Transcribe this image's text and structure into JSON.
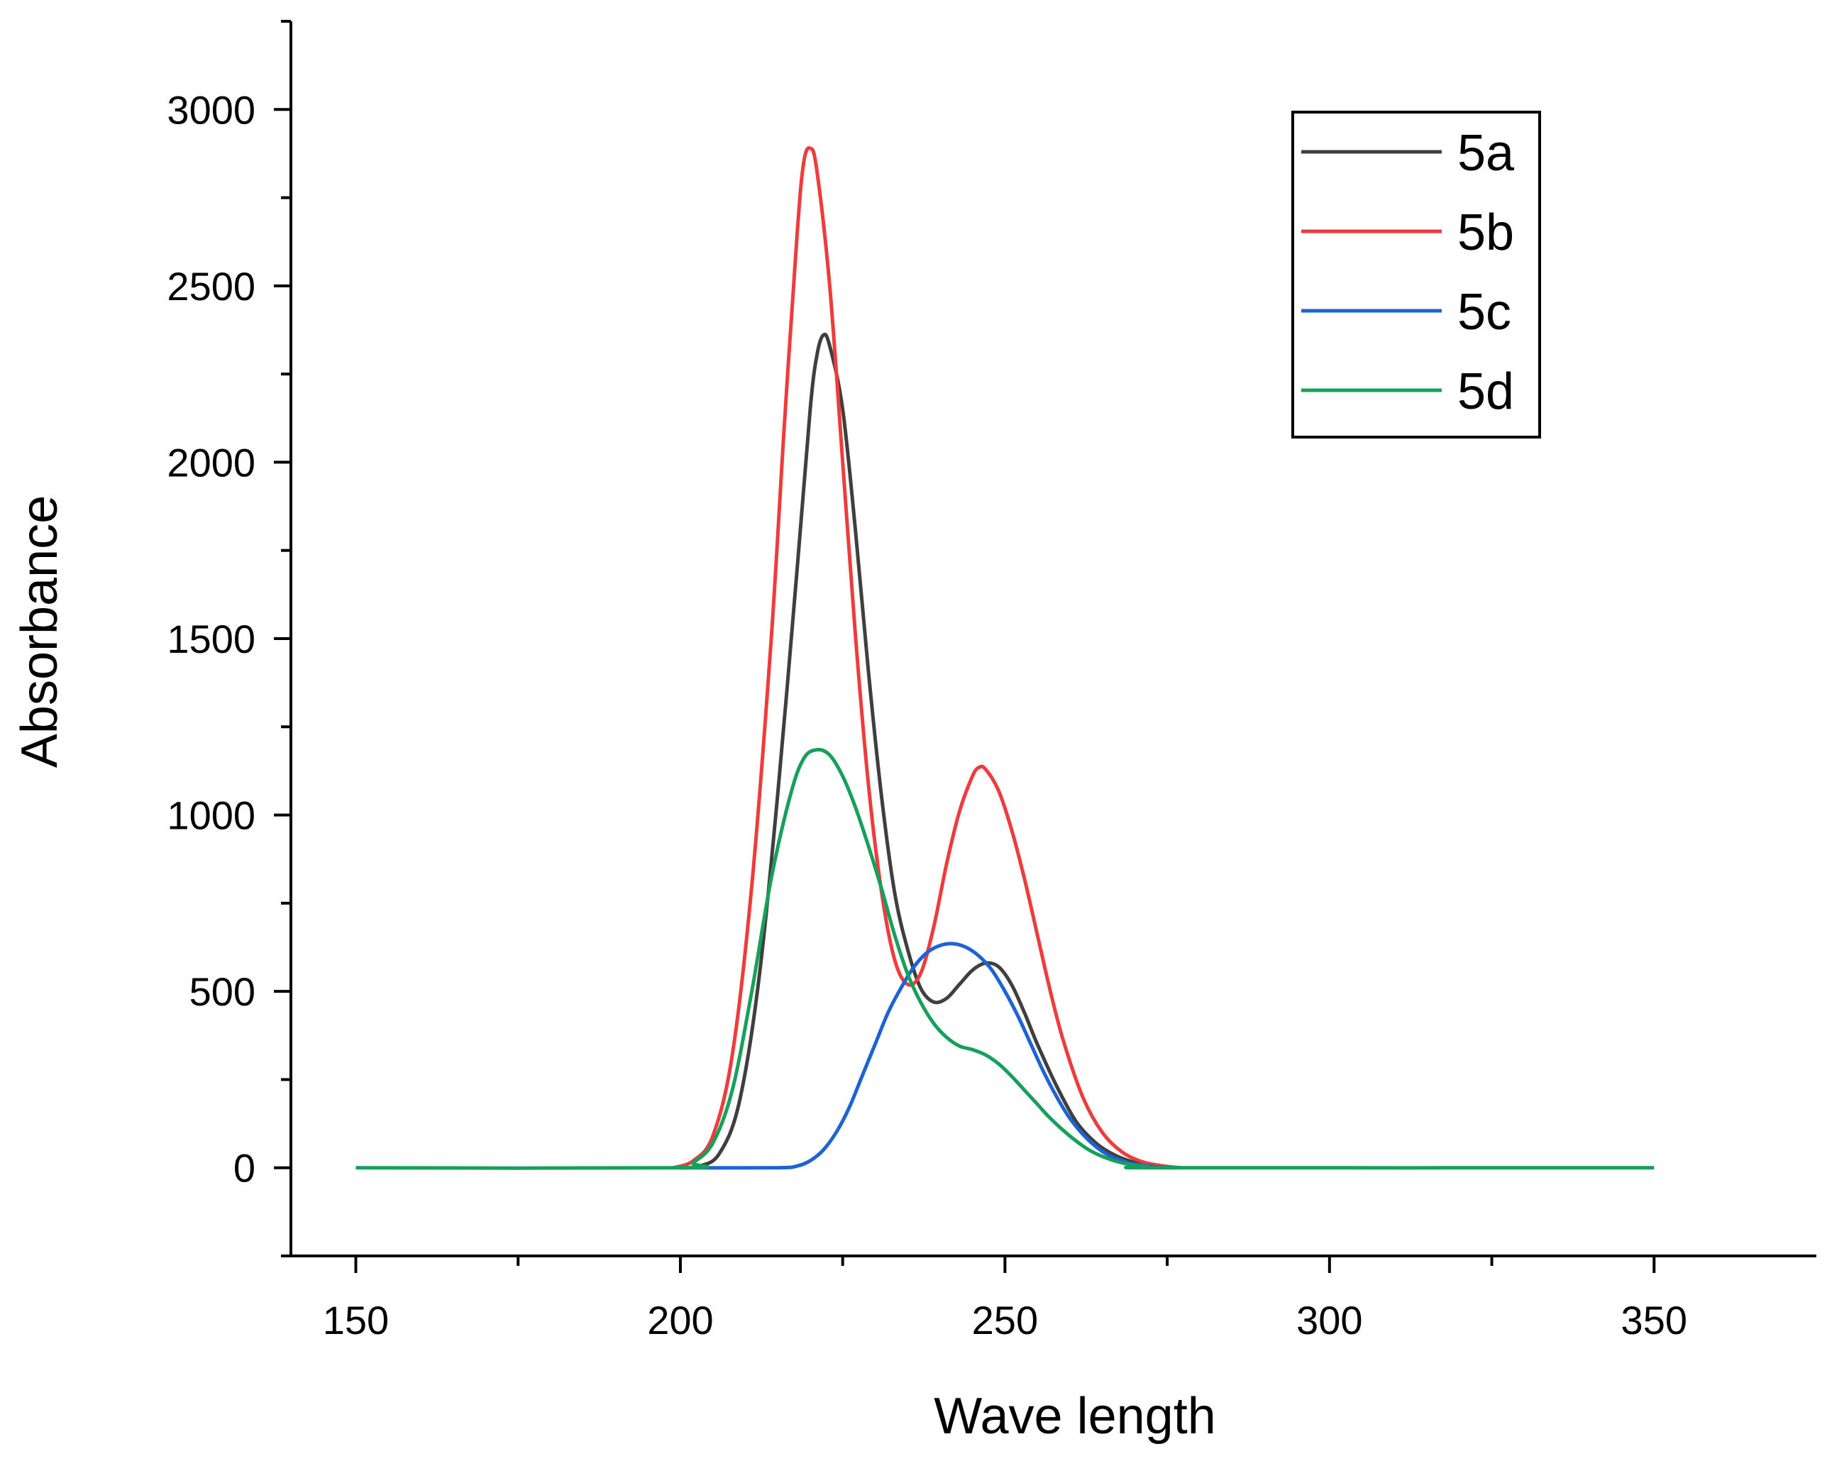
{
  "chart_data": {
    "type": "line",
    "title": "",
    "xlabel": "Wave length",
    "ylabel": "Absorbance",
    "xlim": [
      140,
      375
    ],
    "ylim": [
      -250,
      3250
    ],
    "x_ticks": [
      150,
      200,
      250,
      300,
      350
    ],
    "y_ticks": [
      0,
      500,
      1000,
      1500,
      2000,
      2500,
      3000
    ],
    "x_tick_labels": [
      "150",
      "200",
      "250",
      "300",
      "350"
    ],
    "y_tick_labels": [
      "0",
      "500",
      "1000",
      "1500",
      "2000",
      "2500",
      "3000"
    ],
    "grid": false,
    "legend_position": "top-right",
    "series": [
      {
        "name": "5a",
        "color": "#3f3f3f",
        "points": [
          [
            200,
            0
          ],
          [
            203,
            5
          ],
          [
            206,
            40
          ],
          [
            209,
            180
          ],
          [
            212,
            520
          ],
          [
            215,
            1060
          ],
          [
            218,
            1700
          ],
          [
            220,
            2150
          ],
          [
            221,
            2300
          ],
          [
            222,
            2360
          ],
          [
            223,
            2330
          ],
          [
            225,
            2150
          ],
          [
            227,
            1800
          ],
          [
            229,
            1400
          ],
          [
            231,
            1050
          ],
          [
            233,
            780
          ],
          [
            235,
            620
          ],
          [
            237,
            510
          ],
          [
            239,
            470
          ],
          [
            241,
            480
          ],
          [
            243,
            520
          ],
          [
            245,
            560
          ],
          [
            247,
            580
          ],
          [
            249,
            570
          ],
          [
            251,
            520
          ],
          [
            253,
            440
          ],
          [
            255,
            350
          ],
          [
            258,
            230
          ],
          [
            261,
            130
          ],
          [
            264,
            70
          ],
          [
            267,
            35
          ],
          [
            270,
            15
          ],
          [
            273,
            5
          ],
          [
            276,
            0
          ]
        ]
      },
      {
        "name": "5b",
        "color": "#ee3b3b",
        "points": [
          [
            199,
            0
          ],
          [
            202,
            20
          ],
          [
            205,
            90
          ],
          [
            208,
            320
          ],
          [
            211,
            800
          ],
          [
            214,
            1500
          ],
          [
            216,
            2100
          ],
          [
            218,
            2650
          ],
          [
            219,
            2850
          ],
          [
            220,
            2890
          ],
          [
            221,
            2830
          ],
          [
            223,
            2500
          ],
          [
            225,
            2000
          ],
          [
            227,
            1500
          ],
          [
            229,
            1080
          ],
          [
            231,
            780
          ],
          [
            233,
            590
          ],
          [
            235,
            520
          ],
          [
            237,
            550
          ],
          [
            239,
            680
          ],
          [
            241,
            860
          ],
          [
            243,
            1010
          ],
          [
            245,
            1110
          ],
          [
            246,
            1135
          ],
          [
            247,
            1130
          ],
          [
            249,
            1070
          ],
          [
            251,
            960
          ],
          [
            253,
            820
          ],
          [
            255,
            660
          ],
          [
            257,
            500
          ],
          [
            259,
            360
          ],
          [
            262,
            200
          ],
          [
            265,
            100
          ],
          [
            268,
            45
          ],
          [
            271,
            18
          ],
          [
            274,
            6
          ],
          [
            277,
            0
          ]
        ]
      },
      {
        "name": "5c",
        "color": "#1c63d6",
        "points": [
          [
            200,
            0
          ],
          [
            215,
            0
          ],
          [
            218,
            5
          ],
          [
            220,
            20
          ],
          [
            222,
            50
          ],
          [
            224,
            100
          ],
          [
            226,
            170
          ],
          [
            228,
            260
          ],
          [
            230,
            350
          ],
          [
            232,
            440
          ],
          [
            234,
            510
          ],
          [
            236,
            570
          ],
          [
            238,
            610
          ],
          [
            240,
            630
          ],
          [
            242,
            635
          ],
          [
            244,
            625
          ],
          [
            246,
            600
          ],
          [
            248,
            560
          ],
          [
            250,
            500
          ],
          [
            252,
            430
          ],
          [
            254,
            350
          ],
          [
            256,
            270
          ],
          [
            258,
            200
          ],
          [
            260,
            140
          ],
          [
            262,
            95
          ],
          [
            264,
            60
          ],
          [
            266,
            35
          ],
          [
            268,
            20
          ],
          [
            270,
            10
          ],
          [
            273,
            3
          ],
          [
            276,
            0
          ]
        ]
      },
      {
        "name": "5d",
        "color": "#17a05a",
        "points": [
          [
            150,
            0
          ],
          [
            200,
            0
          ],
          [
            202,
            15
          ],
          [
            205,
            70
          ],
          [
            208,
            220
          ],
          [
            211,
            500
          ],
          [
            214,
            820
          ],
          [
            217,
            1060
          ],
          [
            219,
            1160
          ],
          [
            221,
            1185
          ],
          [
            223,
            1170
          ],
          [
            225,
            1110
          ],
          [
            227,
            1020
          ],
          [
            229,
            910
          ],
          [
            231,
            790
          ],
          [
            233,
            660
          ],
          [
            235,
            550
          ],
          [
            237,
            470
          ],
          [
            239,
            410
          ],
          [
            241,
            370
          ],
          [
            243,
            345
          ],
          [
            245,
            335
          ],
          [
            247,
            320
          ],
          [
            249,
            295
          ],
          [
            251,
            260
          ],
          [
            253,
            220
          ],
          [
            255,
            180
          ],
          [
            257,
            140
          ],
          [
            260,
            90
          ],
          [
            263,
            50
          ],
          [
            266,
            25
          ],
          [
            269,
            10
          ],
          [
            272,
            3
          ],
          [
            275,
            0
          ],
          [
            350,
            0
          ]
        ]
      }
    ]
  }
}
